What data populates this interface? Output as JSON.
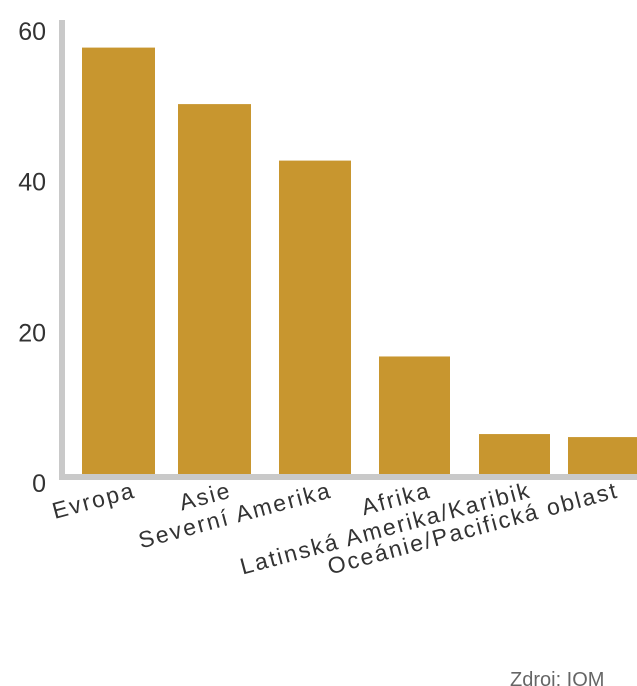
{
  "chart_data": {
    "type": "bar",
    "categories": [
      "Evropa",
      "Asie",
      "Severní Amerika",
      "Afrika",
      "Latinská Amerika/Karibik",
      "Oceánie/Pacifická oblast"
    ],
    "values": [
      57,
      49.5,
      42,
      16,
      5.7,
      5.3
    ],
    "ylim": [
      0,
      60
    ],
    "yticks": [
      0,
      20,
      40,
      60
    ],
    "grid": false,
    "bar_color": "#c8962f",
    "axis_color": "#c9c9c9"
  },
  "source_text": "Zdroj: IOM"
}
